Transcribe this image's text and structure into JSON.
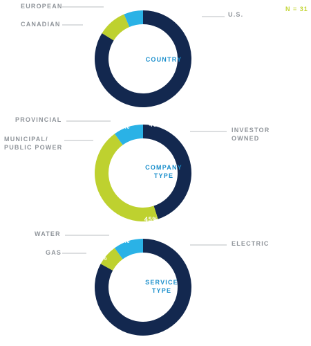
{
  "n_label": "N = 31",
  "colors": {
    "navy": "#13284f",
    "lime": "#bed12f",
    "sky": "#2ab2e6",
    "label_gray": "#8f949a",
    "leader_gray": "#b8bcc0",
    "center_text": "#1b8fcc"
  },
  "chart_data": [
    {
      "type": "pie",
      "subtype": "donut",
      "title": "COUNTRY",
      "slices": [
        {
          "category": "U.S.",
          "value": 26,
          "value_label": "26",
          "color": "navy"
        },
        {
          "category": "CANADIAN",
          "value": 3,
          "value_label": "3",
          "color": "lime"
        },
        {
          "category": "EUROPEAN",
          "value": 2,
          "value_label": "2",
          "color": "sky"
        }
      ]
    },
    {
      "type": "pie",
      "subtype": "donut",
      "title": "COMPANY TYPE",
      "slices": [
        {
          "category": "INVESTOR OWNED",
          "value": 45,
          "value_label": "45%",
          "color": "navy"
        },
        {
          "category": "MUNICIPAL/ PUBLIC POWER",
          "value": 45,
          "value_label": "45%",
          "color": "lime"
        },
        {
          "category": "PROVINCIAL",
          "value": 10,
          "value_label": "10%",
          "color": "sky"
        }
      ]
    },
    {
      "type": "pie",
      "subtype": "donut",
      "title": "SERVICE TYPE",
      "slices": [
        {
          "category": "ELECTRIC",
          "value": 83,
          "value_label": "83%",
          "color": "navy"
        },
        {
          "category": "GAS",
          "value": 7,
          "value_label": "7%",
          "color": "lime"
        },
        {
          "category": "WATER",
          "value": 10,
          "value_label": "10%",
          "color": "sky"
        }
      ]
    }
  ]
}
